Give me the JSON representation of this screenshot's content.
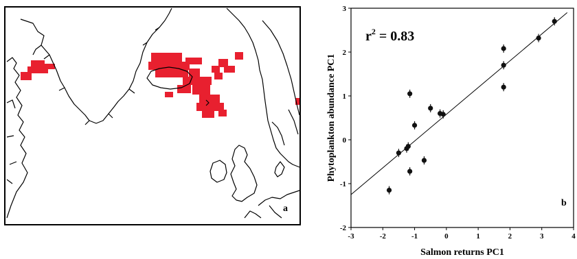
{
  "panels": {
    "map_label": "a",
    "scatter_label": "b"
  },
  "map": {
    "ocean_color": "#ffffff",
    "coast_color": "#000000",
    "highlight_color": "#e8202f"
  },
  "chart_data": {
    "type": "scatter",
    "title": "",
    "xlabel": "Salmon returns PC1",
    "ylabel": "Phytoplankton abundance PC1",
    "annotation": {
      "prefix": "r",
      "superscript": "2",
      "suffix": " = 0.83"
    },
    "xlim": [
      -3,
      4
    ],
    "ylim": [
      -2,
      3
    ],
    "xticks": [
      "-3",
      "-2",
      "-1",
      "0",
      "1",
      "2",
      "3",
      "4"
    ],
    "yticks": [
      "-2",
      "-1",
      "0",
      "1",
      "2",
      "3"
    ],
    "grid": false,
    "point_color": "#111111",
    "points": [
      {
        "x": -1.8,
        "y": -1.15
      },
      {
        "x": -1.5,
        "y": -0.3
      },
      {
        "x": -1.25,
        "y": -0.2
      },
      {
        "x": -1.2,
        "y": -0.15
      },
      {
        "x": -1.15,
        "y": -0.72
      },
      {
        "x": -1.15,
        "y": 1.05
      },
      {
        "x": -1.0,
        "y": 0.33
      },
      {
        "x": -0.7,
        "y": -0.47
      },
      {
        "x": -0.5,
        "y": 0.72
      },
      {
        "x": -0.2,
        "y": 0.6
      },
      {
        "x": -0.1,
        "y": 0.58
      },
      {
        "x": 1.8,
        "y": 2.08
      },
      {
        "x": 1.8,
        "y": 1.7
      },
      {
        "x": 1.8,
        "y": 1.2
      },
      {
        "x": 2.9,
        "y": 2.32
      },
      {
        "x": 3.4,
        "y": 2.7
      }
    ],
    "fit_line": {
      "x": [
        -3,
        3.8
      ],
      "y": [
        -1.25,
        2.9
      ]
    }
  }
}
